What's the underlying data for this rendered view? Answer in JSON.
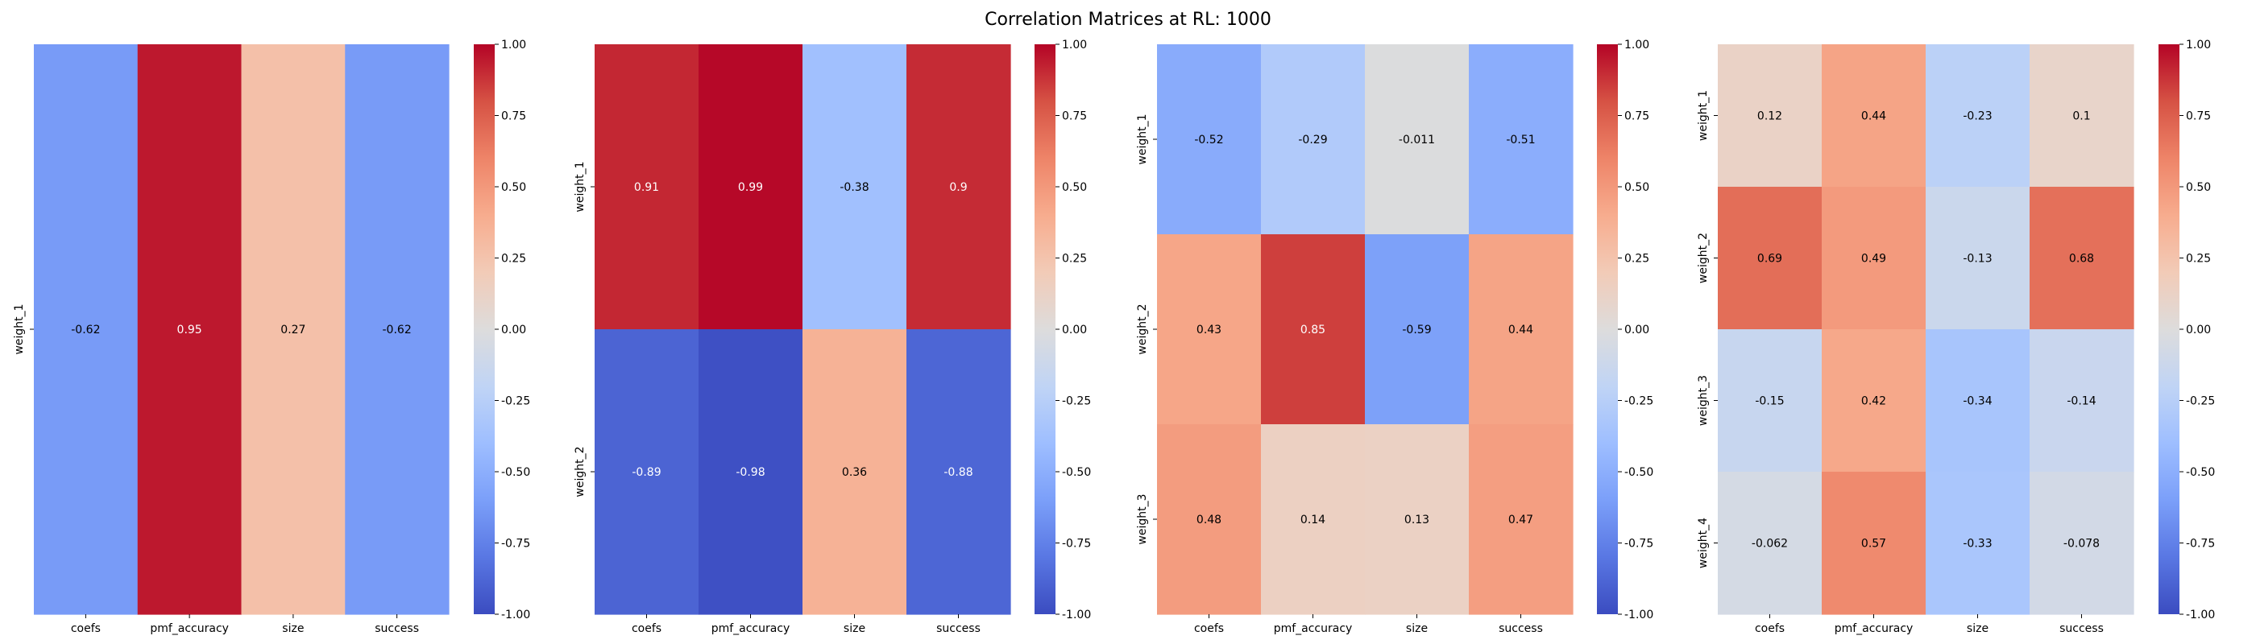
{
  "title": "Correlation Matrices at RL: 1000",
  "colormap": {
    "name": "coolwarm",
    "stops": [
      "#3b4cc0",
      "#5977e3",
      "#7b9ff9",
      "#9ebeff",
      "#c0d4f5",
      "#dddcdc",
      "#f2cbb7",
      "#f7ac8e",
      "#ee8468",
      "#d65244",
      "#b40426"
    ]
  },
  "chart_data": [
    {
      "type": "heatmap",
      "columns": [
        "coefs",
        "pmf_accuracy",
        "size",
        "success"
      ],
      "rows": [
        "weight_1"
      ],
      "values": [
        [
          -0.62,
          0.95,
          0.27,
          -0.62
        ]
      ],
      "value_labels": [
        [
          "-0.62",
          "0.95",
          "0.27",
          "-0.62"
        ]
      ],
      "vmin": -1,
      "vmax": 1,
      "colorbar_ticks": [
        "1.00",
        "0.75",
        "0.50",
        "0.25",
        "0.00",
        "-0.25",
        "-0.50",
        "-0.75",
        "-1.00"
      ]
    },
    {
      "type": "heatmap",
      "columns": [
        "coefs",
        "pmf_accuracy",
        "size",
        "success"
      ],
      "rows": [
        "weight_1",
        "weight_2"
      ],
      "values": [
        [
          0.91,
          0.99,
          -0.38,
          0.9
        ],
        [
          -0.89,
          -0.98,
          0.36,
          -0.88
        ]
      ],
      "value_labels": [
        [
          "0.91",
          "0.99",
          "-0.38",
          "0.9"
        ],
        [
          "-0.89",
          "-0.98",
          "0.36",
          "-0.88"
        ]
      ],
      "vmin": -1,
      "vmax": 1,
      "colorbar_ticks": [
        "1.00",
        "0.75",
        "0.50",
        "0.25",
        "0.00",
        "-0.25",
        "-0.50",
        "-0.75",
        "-1.00"
      ]
    },
    {
      "type": "heatmap",
      "columns": [
        "coefs",
        "pmf_accuracy",
        "size",
        "success"
      ],
      "rows": [
        "weight_1",
        "weight_2",
        "weight_3"
      ],
      "values": [
        [
          -0.52,
          -0.29,
          -0.011,
          -0.51
        ],
        [
          0.43,
          0.85,
          -0.59,
          0.44
        ],
        [
          0.48,
          0.14,
          0.13,
          0.47
        ]
      ],
      "value_labels": [
        [
          "-0.52",
          "-0.29",
          "-0.011",
          "-0.51"
        ],
        [
          "0.43",
          "0.85",
          "-0.59",
          "0.44"
        ],
        [
          "0.48",
          "0.14",
          "0.13",
          "0.47"
        ]
      ],
      "vmin": -1,
      "vmax": 1,
      "colorbar_ticks": [
        "1.00",
        "0.75",
        "0.50",
        "0.25",
        "0.00",
        "-0.25",
        "-0.50",
        "-0.75",
        "-1.00"
      ]
    },
    {
      "type": "heatmap",
      "columns": [
        "coefs",
        "pmf_accuracy",
        "size",
        "success"
      ],
      "rows": [
        "weight_1",
        "weight_2",
        "weight_3",
        "weight_4"
      ],
      "values": [
        [
          0.12,
          0.44,
          -0.23,
          0.1
        ],
        [
          0.69,
          0.49,
          -0.13,
          0.68
        ],
        [
          -0.15,
          0.42,
          -0.34,
          -0.14
        ],
        [
          -0.062,
          0.57,
          -0.33,
          -0.078
        ]
      ],
      "value_labels": [
        [
          "0.12",
          "0.44",
          "-0.23",
          "0.1"
        ],
        [
          "0.69",
          "0.49",
          "-0.13",
          "0.68"
        ],
        [
          "-0.15",
          "0.42",
          "-0.34",
          "-0.14"
        ],
        [
          "-0.062",
          "0.57",
          "-0.33",
          "-0.078"
        ]
      ],
      "vmin": -1,
      "vmax": 1,
      "colorbar_ticks": [
        "1.00",
        "0.75",
        "0.50",
        "0.25",
        "0.00",
        "-0.25",
        "-0.50",
        "-0.75",
        "-1.00"
      ]
    }
  ]
}
